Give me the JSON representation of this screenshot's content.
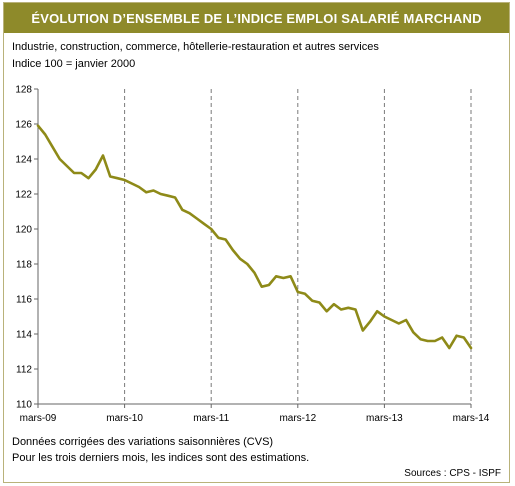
{
  "header": {
    "title": "ÉVOLUTION D’ENSEMBLE DE L’INDICE EMPLOI SALARIÉ MARCHAND",
    "subtitle": "Industrie, construction, commerce, hôtellerie-restauration et autres services",
    "subtitle2": "Indice 100 = janvier 2000"
  },
  "footer": {
    "note1": "Données corrigées des variations saisonnières (CVS)",
    "note2": "Pour les trois derniers mois, les indices sont des estimations.",
    "source": "Sources : CPS - ISPF"
  },
  "colors": {
    "title_bg": "#8e8a2a",
    "line": "#8e8a18",
    "grid": "#7a7a7a",
    "frame": "#b9b27a"
  },
  "chart_data": {
    "type": "line",
    "title": "ÉVOLUTION D’ENSEMBLE DE L’INDICE EMPLOI SALARIÉ MARCHAND",
    "xlabel": "",
    "ylabel": "",
    "ylim": [
      110,
      128
    ],
    "yticks": [
      110,
      112,
      114,
      116,
      118,
      120,
      122,
      124,
      126,
      128
    ],
    "xlim": [
      0,
      60
    ],
    "xticks": [
      {
        "x": 0,
        "label": "mars-09"
      },
      {
        "x": 12,
        "label": "mars-10"
      },
      {
        "x": 24,
        "label": "mars-11"
      },
      {
        "x": 36,
        "label": "mars-12"
      },
      {
        "x": 48,
        "label": "mars-13"
      },
      {
        "x": 60,
        "label": "mars-14"
      }
    ],
    "grid": "vertical",
    "series": [
      {
        "x": [
          0,
          1,
          2,
          3,
          4,
          5,
          6,
          7,
          8,
          9,
          10,
          11,
          12,
          13,
          14,
          15,
          16,
          17,
          18,
          19,
          20,
          21,
          22,
          23,
          24,
          25,
          26,
          27,
          28,
          29,
          30,
          31,
          32,
          33,
          34,
          35,
          36,
          37,
          38,
          39,
          40,
          41,
          42,
          43,
          44,
          45,
          46,
          47,
          48,
          49,
          50,
          51,
          52,
          53,
          54,
          55,
          56,
          57,
          58,
          59,
          60
        ],
        "values": [
          125.9,
          125.4,
          124.7,
          124.0,
          123.6,
          123.2,
          123.2,
          122.9,
          123.4,
          124.2,
          123.0,
          122.9,
          122.8,
          122.6,
          122.4,
          122.1,
          122.2,
          122.0,
          121.9,
          121.8,
          121.1,
          120.9,
          120.6,
          120.3,
          120.0,
          119.5,
          119.4,
          118.8,
          118.3,
          118.0,
          117.5,
          116.7,
          116.8,
          117.3,
          117.2,
          117.3,
          116.4,
          116.3,
          115.9,
          115.8,
          115.3,
          115.7,
          115.4,
          115.5,
          115.4,
          114.2,
          114.7,
          115.3,
          115.0,
          114.8,
          114.6,
          114.8,
          114.1,
          113.7,
          113.6,
          113.6,
          113.8,
          113.2,
          113.9,
          113.8,
          113.2
        ]
      }
    ]
  }
}
